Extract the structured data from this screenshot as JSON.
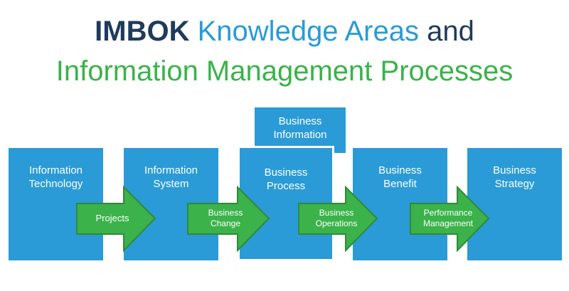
{
  "title": {
    "line1": {
      "bold": "IMBOK",
      "blue": "Knowledge Areas",
      "dark": "and"
    },
    "line2": "Information Management Processes"
  },
  "colors": {
    "box": "#2a9bd6",
    "arrow": "#3bb24a",
    "arrow_stroke": "#2f8a3a",
    "title_dark": "#1f3b5c"
  },
  "boxes": [
    {
      "line1": "Information",
      "line2": "Technology"
    },
    {
      "line1": "Information",
      "line2": "System"
    },
    {
      "line1": "Business",
      "line2": "Process"
    },
    {
      "line1": "Business",
      "line2": "Benefit"
    },
    {
      "line1": "Business",
      "line2": "Strategy"
    }
  ],
  "top_box": {
    "line1": "Business",
    "line2": "Information"
  },
  "arrows": [
    {
      "line1": "Projects",
      "line2": ""
    },
    {
      "line1": "Business",
      "line2": "Change"
    },
    {
      "line1": "Business",
      "line2": "Operations"
    },
    {
      "line1": "Performance",
      "line2": "Management"
    }
  ]
}
